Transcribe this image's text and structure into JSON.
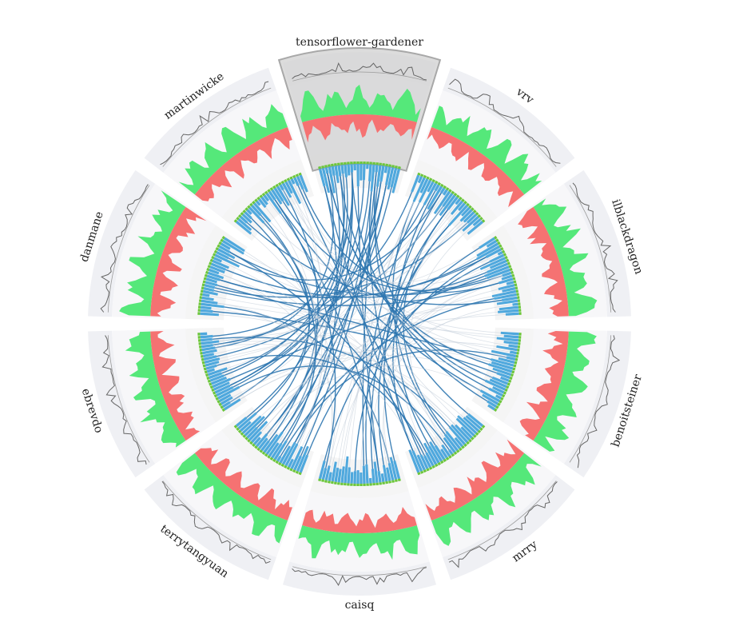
{
  "chart_data": {
    "type": "radial",
    "title": "",
    "segments": [
      {
        "name": "tensorflower-gardener",
        "highlighted": true
      },
      {
        "name": "vrv",
        "highlighted": false
      },
      {
        "name": "ilblackdragon",
        "highlighted": false
      },
      {
        "name": "benoitsteiner",
        "highlighted": false
      },
      {
        "name": "mrry",
        "highlighted": false
      },
      {
        "name": "caisq",
        "highlighted": false
      },
      {
        "name": "terrytangyuan",
        "highlighted": false
      },
      {
        "name": "ebrevdo",
        "highlighted": false
      },
      {
        "name": "danmane",
        "highlighted": false
      },
      {
        "name": "martinwicke",
        "highlighted": false
      }
    ],
    "tracks": {
      "activity_line": {
        "color": "#666666"
      },
      "additions_area": {
        "color": "#55e87a"
      },
      "deletions_area": {
        "color": "#f57272"
      },
      "commit_bars": {
        "color": "#4fa8dd",
        "cap_color": "#6cc63a"
      },
      "links": {
        "color": "#2f77b0",
        "faded_color": "#c4cedb"
      }
    },
    "grid": false,
    "legend": "none"
  },
  "colors": {
    "band_outer": "#eff0f4",
    "band_mid": "#f7f7f9",
    "band_inner": "#ededed",
    "highlight_fill": "#d6d6d6",
    "highlight_stroke": "#9a9a9a"
  }
}
